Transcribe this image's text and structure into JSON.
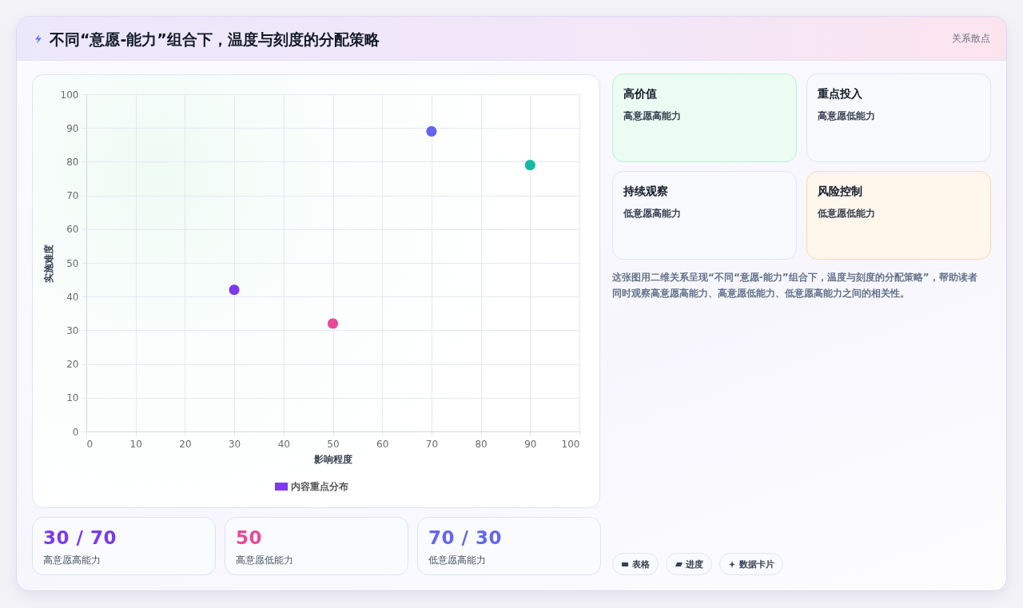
{
  "chart_data": [
    {
      "type": "other",
      "title": "不同“意愿-能力”组合下，温度与刻度的分配策略",
      "subtitle": "关系散点"
    },
    {
      "type": "scatter",
      "xlabel": "影响程度",
      "ylabel": "实施难度",
      "x": [
        30,
        50,
        70,
        90
      ],
      "series": [
        {
          "name": "内容重点分布",
          "color": "#7c3aed",
          "colors": [
            "#7c3aed",
            "#ec4899",
            "#6366f1",
            "#14b8a6"
          ],
          "values": [
            42,
            32,
            89,
            79
          ]
        }
      ],
      "xlim": [
        0,
        100
      ],
      "ylim": [
        0,
        100
      ],
      "xticks": [
        0,
        10,
        20,
        30,
        40,
        50,
        60,
        70,
        80,
        90,
        100
      ],
      "yticks": [
        0,
        10,
        20,
        30,
        40,
        50,
        60,
        70,
        80,
        90,
        100
      ],
      "grid": true,
      "legend": "bottom",
      "marker": "circle"
    },
    {
      "type": "other",
      "annotations": [
        "高价值",
        "高意愿高能力",
        "重点投入",
        "高意愿低能力",
        "持续观察",
        "低意愿高能力",
        "风险控制",
        "低意愿低能力"
      ]
    },
    {
      "type": "other",
      "annotations": [
        "这张图用二维关系呈现“不同“意愿-能力”组合下，温度与刻度的分配策略”，帮助读者同时观察高意愿高能力、高意愿低能力、低意愿高能力之间的相关性。"
      ]
    },
    {
      "type": "other",
      "annotations": [
        "30 / 70",
        "高意愿高能力",
        "50",
        "高意愿低能力",
        "70 / 30",
        "低意愿高能力"
      ],
      "colors": [
        "#7c3aed",
        "#ec4899",
        "#6366f1"
      ]
    },
    {
      "type": "other",
      "annotations": [
        "表格",
        "进度",
        "数据卡片"
      ]
    }
  ]
}
